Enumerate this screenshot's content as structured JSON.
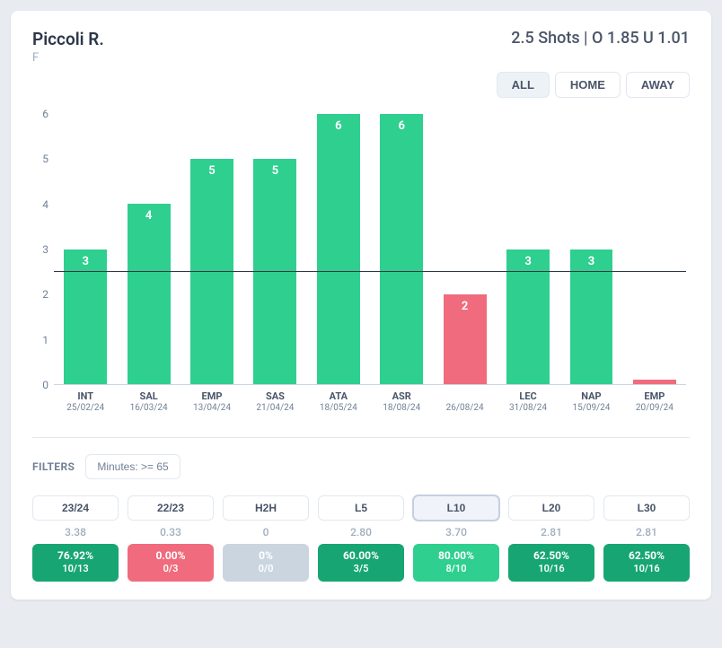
{
  "colors": {
    "green": "#2ecf8f",
    "green_dark": "#17a673",
    "red": "#f06b7d",
    "gray": "#cbd5e0",
    "text": "#2d3748",
    "muted": "#718096"
  },
  "header": {
    "name": "Piccoli R.",
    "position": "F",
    "odds": "2.5 Shots | O 1.85 U 1.01"
  },
  "tabs": [
    {
      "label": "ALL",
      "active": true
    },
    {
      "label": "HOME",
      "active": false
    },
    {
      "label": "AWAY",
      "active": false
    }
  ],
  "chart": {
    "type": "bar",
    "ymin": 0,
    "ymax": 6,
    "ytick_step": 1,
    "target_line": 2.5,
    "label_fontsize": 13,
    "bars": [
      {
        "team": "INT",
        "date": "25/02/24",
        "value": 3,
        "over": true
      },
      {
        "team": "SAL",
        "date": "16/03/24",
        "value": 4,
        "over": true
      },
      {
        "team": "EMP",
        "date": "13/04/24",
        "value": 5,
        "over": true
      },
      {
        "team": "SAS",
        "date": "21/04/24",
        "value": 5,
        "over": true
      },
      {
        "team": "ATA",
        "date": "18/05/24",
        "value": 6,
        "over": true
      },
      {
        "team": "ASR",
        "date": "18/08/24",
        "value": 6,
        "over": true
      },
      {
        "team": "",
        "date": "26/08/24",
        "value": 2,
        "over": false
      },
      {
        "team": "LEC",
        "date": "31/08/24",
        "value": 3,
        "over": true
      },
      {
        "team": "NAP",
        "date": "15/09/24",
        "value": 3,
        "over": true
      },
      {
        "team": "EMP",
        "date": "20/09/24",
        "value": 0.1,
        "over": false,
        "hide_label": true
      }
    ]
  },
  "filters": {
    "title": "FILTERS",
    "chips": [
      "Minutes: >= 65"
    ]
  },
  "stats": [
    {
      "label": "23/24",
      "avg": "3.38",
      "pct": "76.92%",
      "frac": "10/13",
      "badge": "green_dark",
      "active": false
    },
    {
      "label": "22/23",
      "avg": "0.33",
      "pct": "0.00%",
      "frac": "0/3",
      "badge": "red",
      "active": false
    },
    {
      "label": "H2H",
      "avg": "0",
      "pct": "0%",
      "frac": "0/0",
      "badge": "gray",
      "active": false
    },
    {
      "label": "L5",
      "avg": "2.80",
      "pct": "60.00%",
      "frac": "3/5",
      "badge": "green_dark",
      "active": false
    },
    {
      "label": "L10",
      "avg": "3.70",
      "pct": "80.00%",
      "frac": "8/10",
      "badge": "green",
      "active": true
    },
    {
      "label": "L20",
      "avg": "2.81",
      "pct": "62.50%",
      "frac": "10/16",
      "badge": "green_dark",
      "active": false
    },
    {
      "label": "L30",
      "avg": "2.81",
      "pct": "62.50%",
      "frac": "10/16",
      "badge": "green_dark",
      "active": false
    }
  ]
}
